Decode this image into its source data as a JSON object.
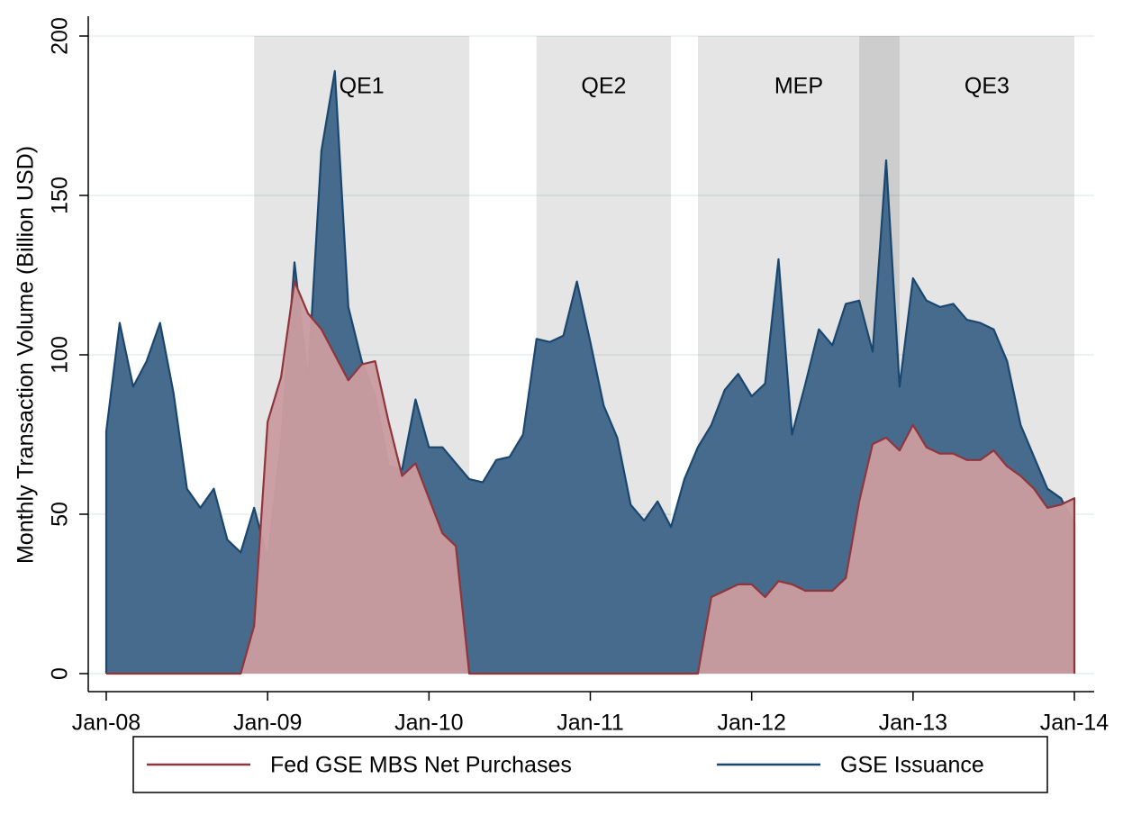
{
  "chart_data": {
    "type": "area",
    "ylabel": "Monthly Transaction Volume (Billion USD)",
    "x": [
      "2008-01",
      "2008-02",
      "2008-03",
      "2008-04",
      "2008-05",
      "2008-06",
      "2008-07",
      "2008-08",
      "2008-09",
      "2008-10",
      "2008-11",
      "2008-12",
      "2009-01",
      "2009-02",
      "2009-03",
      "2009-04",
      "2009-05",
      "2009-06",
      "2009-07",
      "2009-08",
      "2009-09",
      "2009-10",
      "2009-11",
      "2009-12",
      "2010-01",
      "2010-02",
      "2010-03",
      "2010-04",
      "2010-05",
      "2010-06",
      "2010-07",
      "2010-08",
      "2010-09",
      "2010-10",
      "2010-11",
      "2010-12",
      "2011-01",
      "2011-02",
      "2011-03",
      "2011-04",
      "2011-05",
      "2011-06",
      "2011-07",
      "2011-08",
      "2011-09",
      "2011-10",
      "2011-11",
      "2011-12",
      "2012-01",
      "2012-02",
      "2012-03",
      "2012-04",
      "2012-05",
      "2012-06",
      "2012-07",
      "2012-08",
      "2012-09",
      "2012-10",
      "2012-11",
      "2012-12",
      "2013-01",
      "2013-02",
      "2013-03",
      "2013-04",
      "2013-05",
      "2013-06",
      "2013-07",
      "2013-08",
      "2013-09",
      "2013-10",
      "2013-11",
      "2013-12",
      "2014-01"
    ],
    "series": [
      {
        "name": "GSE Issuance",
        "color": "#1a476f",
        "fill": "#476b8c",
        "values": [
          76,
          110,
          90,
          98,
          110,
          88,
          58,
          52,
          58,
          42,
          38,
          52,
          36,
          72,
          129,
          92,
          164,
          189,
          115,
          98,
          87,
          65,
          64,
          86,
          71,
          71,
          66,
          61,
          60,
          67,
          68,
          75,
          105,
          104,
          106,
          123,
          104,
          84,
          74,
          53,
          48,
          54,
          46,
          61,
          71,
          78,
          89,
          94,
          87,
          91,
          130,
          75,
          91,
          108,
          103,
          116,
          117,
          101,
          161,
          90,
          124,
          117,
          115,
          116,
          111,
          110,
          108,
          98,
          78,
          68,
          58,
          55,
          47
        ]
      },
      {
        "name": "Fed GSE MBS Net Purchases",
        "color": "#90353b",
        "fill": "#c99ca0",
        "values": [
          0,
          0,
          0,
          0,
          0,
          0,
          0,
          0,
          0,
          0,
          0,
          15,
          79,
          93,
          123,
          113,
          108,
          100,
          92,
          97,
          98,
          79,
          62,
          66,
          55,
          44,
          40,
          0,
          0,
          0,
          0,
          0,
          0,
          0,
          0,
          0,
          0,
          0,
          0,
          0,
          0,
          0,
          0,
          0,
          0,
          24,
          26,
          28,
          28,
          24,
          29,
          28,
          26,
          26,
          26,
          30,
          54,
          72,
          74,
          70,
          78,
          71,
          69,
          69,
          67,
          67,
          70,
          65,
          62,
          58,
          52,
          53,
          55
        ]
      }
    ],
    "legend_order": [
      1,
      0
    ],
    "shaded_regions": [
      {
        "label": "QE1",
        "start": "2008-12",
        "end": "2010-04"
      },
      {
        "label": "QE2",
        "start": "2010-09",
        "end": "2011-07"
      },
      {
        "label": "MEP",
        "start": "2011-09",
        "end": "2012-12"
      },
      {
        "label": "QE3",
        "start": "2012-09",
        "end": "2014-01"
      }
    ],
    "ylim": [
      0,
      200
    ],
    "yticks": [
      0,
      50,
      100,
      150,
      200
    ],
    "xticks": [
      {
        "value": "2008-01",
        "label": "Jan-08"
      },
      {
        "value": "2009-01",
        "label": "Jan-09"
      },
      {
        "value": "2010-01",
        "label": "Jan-10"
      },
      {
        "value": "2011-01",
        "label": "Jan-11"
      },
      {
        "value": "2012-01",
        "label": "Jan-12"
      },
      {
        "value": "2013-01",
        "label": "Jan-13"
      },
      {
        "value": "2014-01",
        "label": "Jan-14"
      }
    ],
    "grid": true
  }
}
